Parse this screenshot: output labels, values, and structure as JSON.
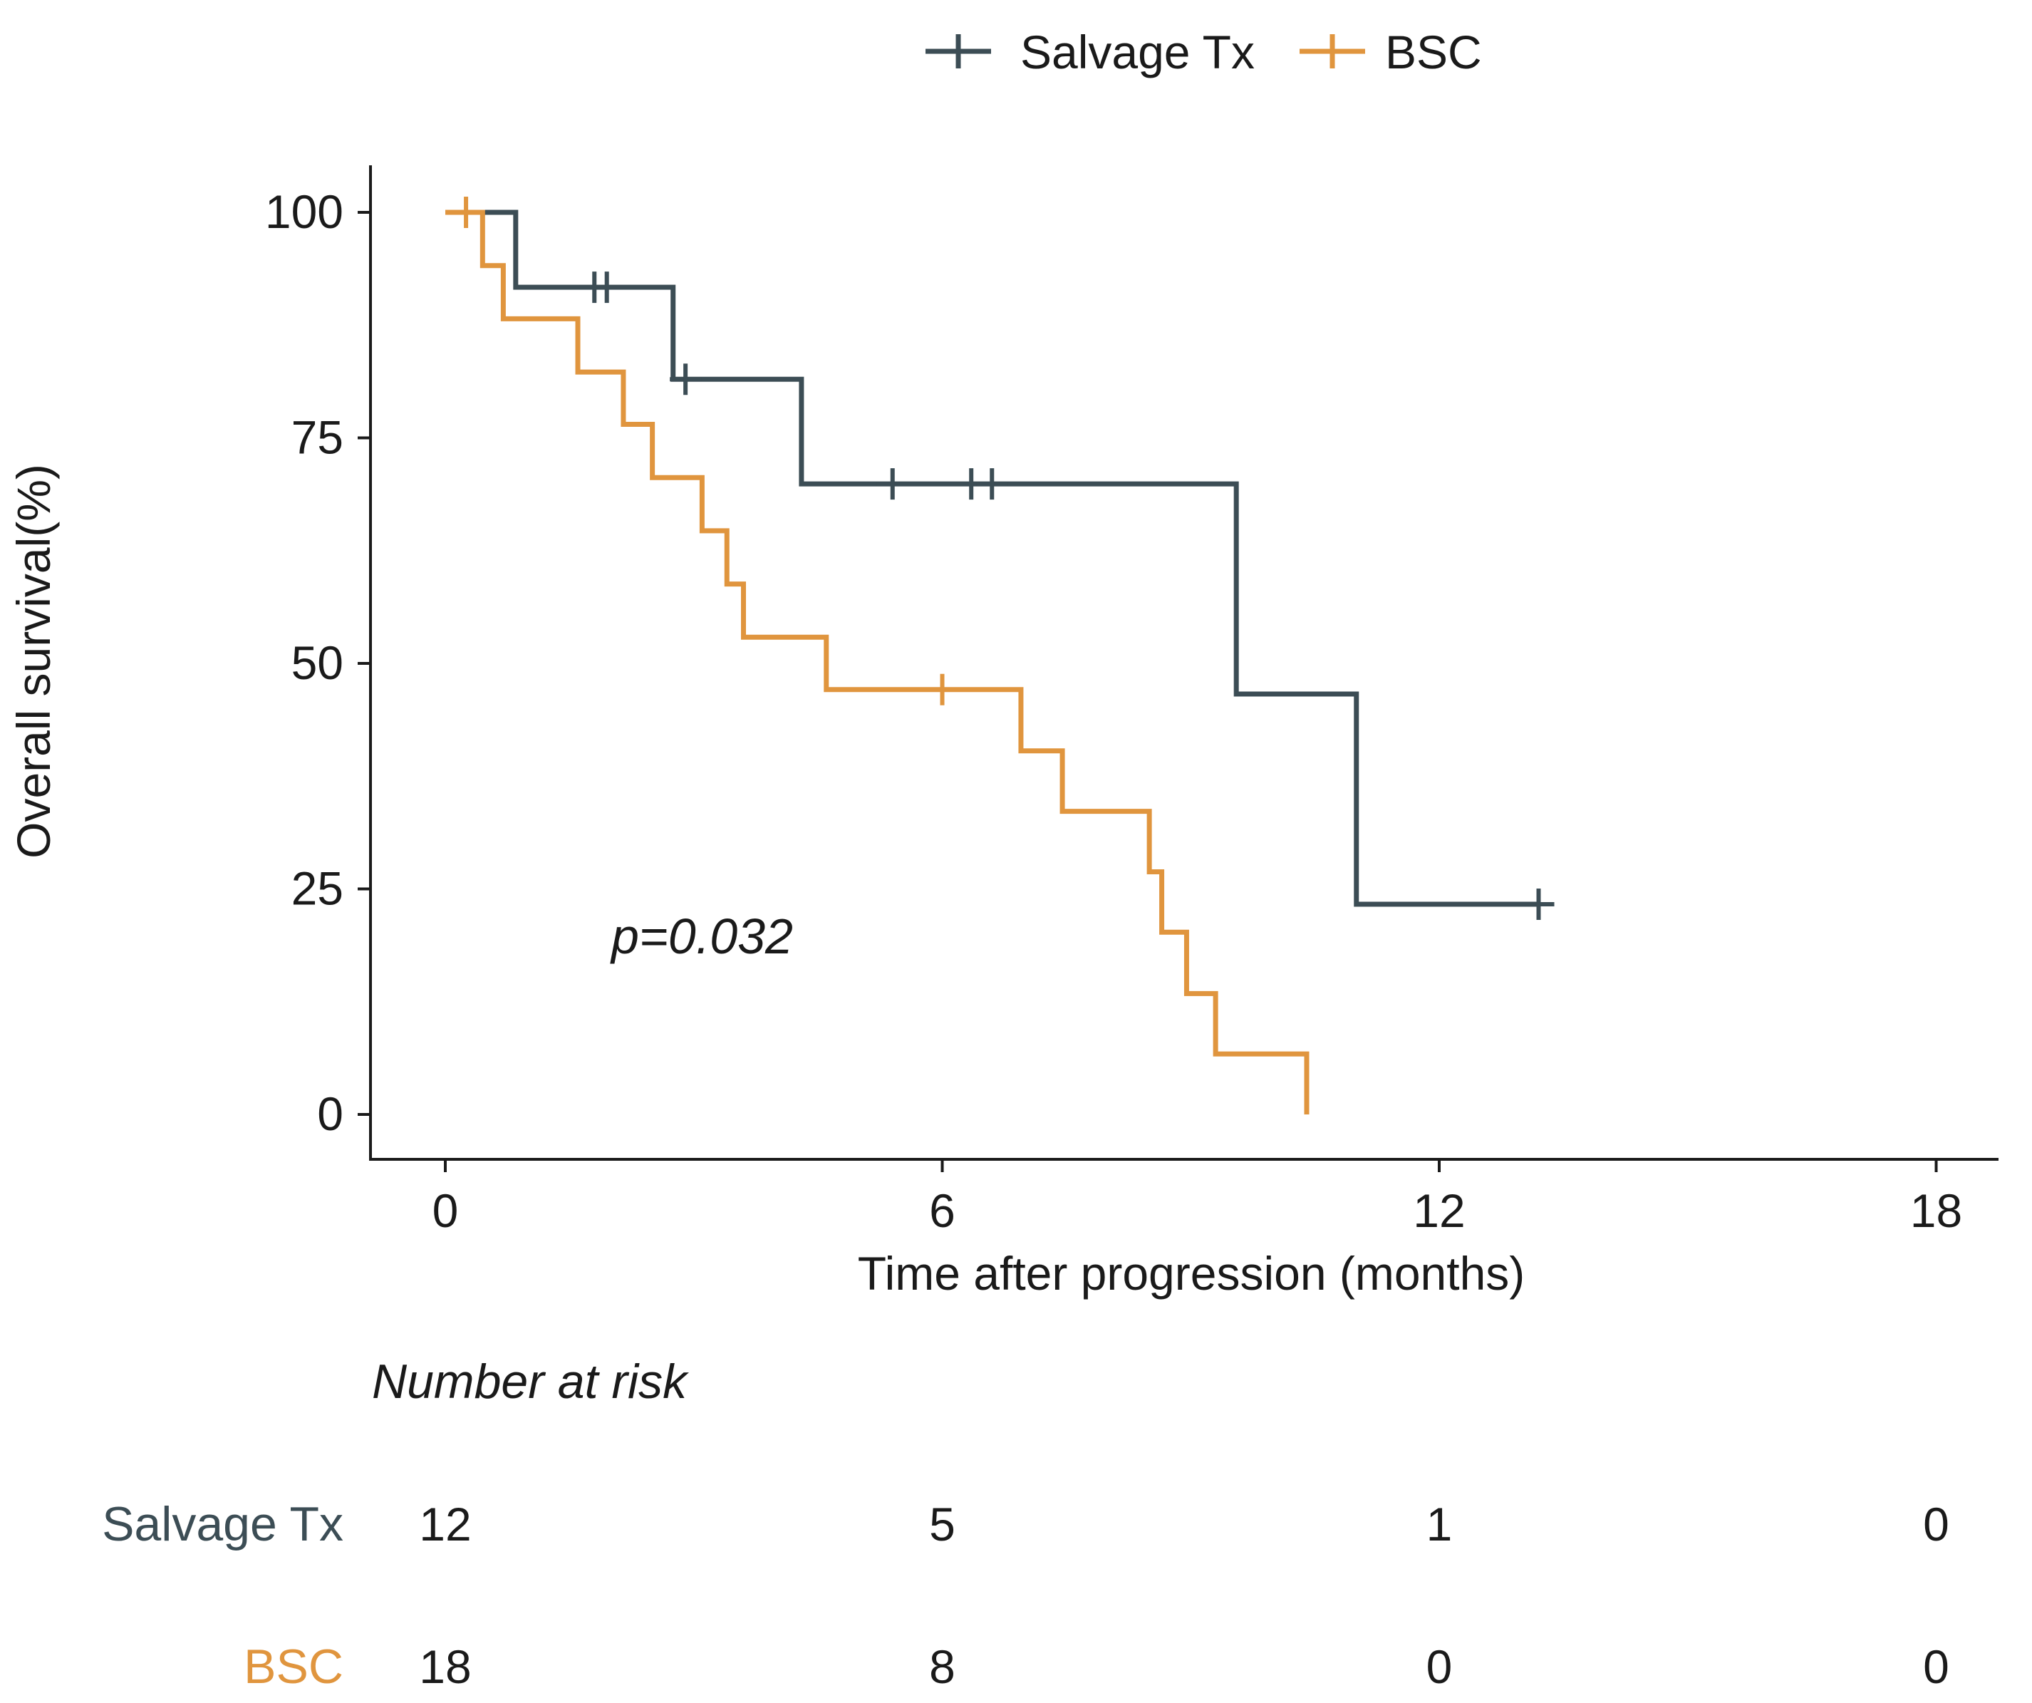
{
  "chart_data": {
    "type": "kaplan-meier",
    "title": "",
    "xlabel": "Time after progression (months)",
    "ylabel": "Overall survival(%)",
    "xlim": [
      -0.9,
      18.8
    ],
    "ylim": [
      -5,
      105
    ],
    "xticks": [
      0,
      6,
      12,
      18
    ],
    "yticks": [
      0,
      25,
      50,
      75,
      100
    ],
    "grid": false,
    "legend_position": "top-center",
    "pvalue_text": "p=0.032",
    "series": [
      {
        "name": "Salvage Tx",
        "color": "#3c4d55",
        "steps": [
          [
            0,
            100
          ],
          [
            0.85,
            91.7
          ],
          [
            2.75,
            81.5
          ],
          [
            4.3,
            69.9
          ],
          [
            9.55,
            46.6
          ],
          [
            11.0,
            23.3
          ],
          [
            13.2,
            23.3
          ]
        ],
        "censors": [
          [
            1.8,
            91.7
          ],
          [
            1.95,
            91.7
          ],
          [
            2.9,
            81.5
          ],
          [
            5.4,
            69.9
          ],
          [
            6.35,
            69.9
          ],
          [
            6.6,
            69.9
          ],
          [
            13.2,
            23.3
          ]
        ]
      },
      {
        "name": "BSC",
        "color": "#e0953e",
        "steps": [
          [
            0,
            100
          ],
          [
            0.45,
            94.1
          ],
          [
            0.7,
            88.2
          ],
          [
            1.6,
            82.3
          ],
          [
            2.15,
            76.5
          ],
          [
            2.5,
            70.6
          ],
          [
            3.1,
            64.7
          ],
          [
            3.4,
            58.8
          ],
          [
            3.6,
            52.9
          ],
          [
            4.6,
            47.1
          ],
          [
            6.95,
            40.3
          ],
          [
            7.45,
            33.6
          ],
          [
            8.5,
            26.9
          ],
          [
            8.65,
            20.2
          ],
          [
            8.95,
            13.4
          ],
          [
            9.3,
            6.7
          ],
          [
            10.4,
            0
          ]
        ],
        "censors": [
          [
            0.25,
            100
          ],
          [
            6.0,
            47.1
          ]
        ]
      }
    ],
    "risk_table": {
      "title": "Number at risk",
      "times": [
        0,
        6,
        12,
        18
      ],
      "rows": [
        {
          "label": "Salvage Tx",
          "color": "#3c4d55",
          "counts": [
            "12",
            "5",
            "1",
            "0"
          ]
        },
        {
          "label": "BSC",
          "color": "#e0953e",
          "counts": [
            "18",
            "8",
            "0",
            "0"
          ]
        }
      ]
    }
  }
}
